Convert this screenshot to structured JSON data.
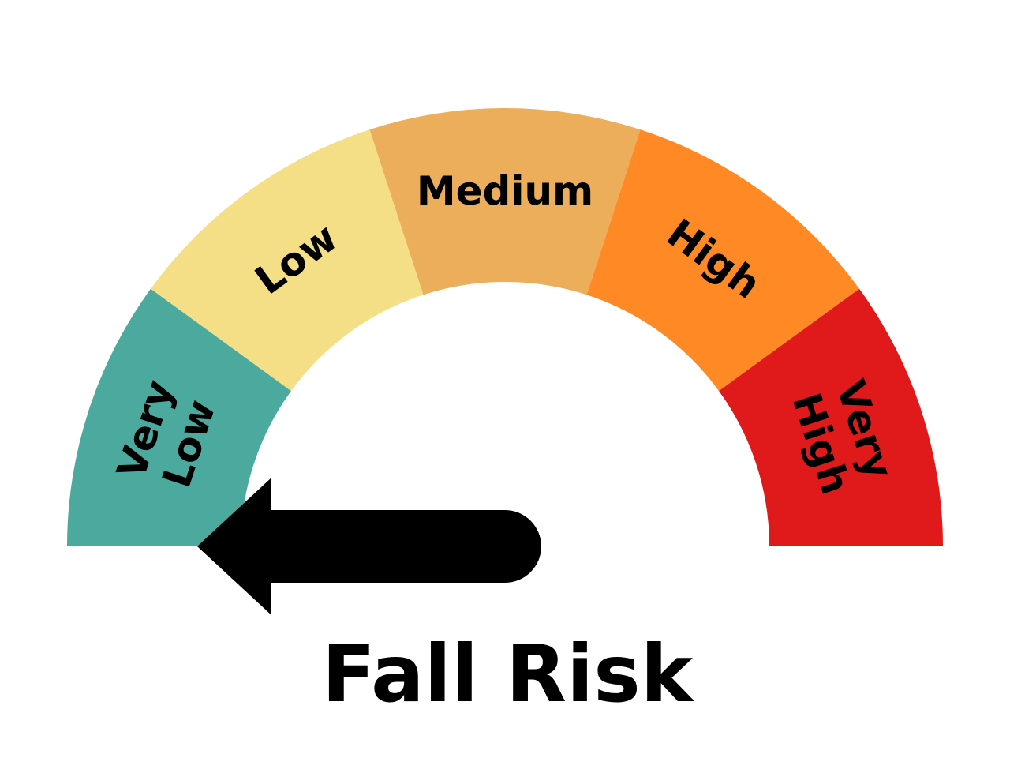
{
  "chart_data": {
    "type": "gauge",
    "title": "Fall Risk",
    "segments": [
      {
        "label_lines": [
          "Very",
          "Low"
        ],
        "color": "#4BA99E"
      },
      {
        "label_lines": [
          "Low"
        ],
        "color": "#F4DF87"
      },
      {
        "label_lines": [
          "Medium"
        ],
        "color": "#EDAE5B"
      },
      {
        "label_lines": [
          "High"
        ],
        "color": "#FF8925"
      },
      {
        "label_lines": [
          "Very",
          "High"
        ],
        "color": "#E01A1A"
      }
    ],
    "needle": {
      "segment": "Very Low",
      "segment_index": 0,
      "value_fraction": 0.0,
      "color": "#000000"
    }
  }
}
